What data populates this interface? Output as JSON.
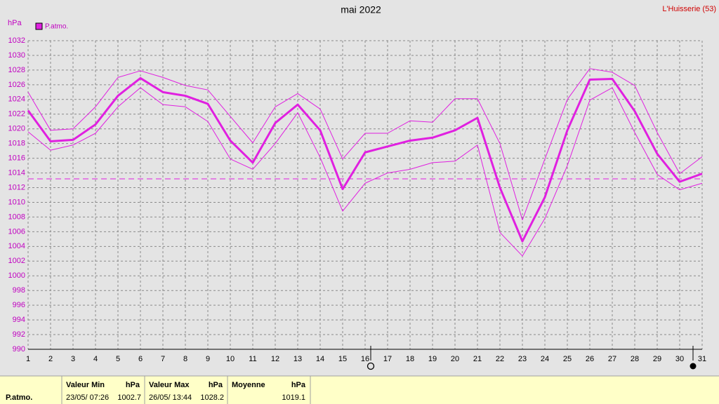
{
  "chart_data": {
    "type": "line",
    "title": "mai 2022",
    "location": "L'Huisserie (53)",
    "y_label": "hPa",
    "x": [
      1,
      2,
      3,
      4,
      5,
      6,
      7,
      8,
      9,
      10,
      11,
      12,
      13,
      14,
      15,
      16,
      17,
      18,
      19,
      20,
      21,
      22,
      23,
      24,
      25,
      26,
      27,
      28,
      29,
      30,
      31
    ],
    "series": [
      {
        "name": "P.atmo.",
        "color": "#e020e0",
        "width": 3,
        "values": [
          1022.5,
          1018.3,
          1018.5,
          1020.6,
          1024.5,
          1026.9,
          1025.0,
          1024.5,
          1023.4,
          1018.4,
          1015.4,
          1020.8,
          1023.3,
          1019.8,
          1011.8,
          1016.8,
          1017.6,
          1018.4,
          1018.8,
          1019.8,
          1021.5,
          1012.0,
          1004.7,
          1010.7,
          1019.8,
          1026.7,
          1026.8,
          1022.4,
          1016.6,
          1012.8,
          1013.9
        ]
      },
      {
        "color": "#e020e0",
        "width": 1,
        "values": [
          1025.0,
          1019.8,
          1020.0,
          1023.0,
          1027.0,
          1027.9,
          1027.0,
          1025.9,
          1025.3,
          1021.7,
          1018.1,
          1023.0,
          1024.8,
          1022.7,
          1015.9,
          1019.4,
          1019.4,
          1021.1,
          1020.9,
          1024.1,
          1024.1,
          1018.0,
          1007.6,
          1015.9,
          1024.0,
          1028.2,
          1027.7,
          1025.9,
          1019.5,
          1013.9,
          1016.2
        ]
      },
      {
        "color": "#e020e0",
        "width": 1,
        "values": [
          1019.6,
          1017.1,
          1017.8,
          1019.4,
          1023.0,
          1025.6,
          1023.3,
          1023.0,
          1021.0,
          1015.9,
          1014.5,
          1018.0,
          1022.2,
          1016.1,
          1008.8,
          1012.6,
          1014.0,
          1014.5,
          1015.4,
          1015.6,
          1017.8,
          1005.9,
          1002.7,
          1007.8,
          1015.0,
          1023.9,
          1025.6,
          1019.5,
          1013.8,
          1011.7,
          1012.6
        ]
      }
    ],
    "reference_line": 1013.2,
    "xlim": [
      1,
      31
    ],
    "xticks": [
      1,
      2,
      3,
      4,
      5,
      6,
      7,
      8,
      9,
      10,
      11,
      12,
      13,
      14,
      15,
      16,
      17,
      18,
      19,
      20,
      21,
      22,
      23,
      24,
      25,
      26,
      27,
      28,
      29,
      30,
      31
    ],
    "ylim": [
      990,
      1032
    ],
    "yticks": [
      990,
      992,
      994,
      996,
      998,
      1000,
      1002,
      1004,
      1006,
      1008,
      1010,
      1012,
      1014,
      1016,
      1018,
      1020,
      1022,
      1024,
      1026,
      1028,
      1030,
      1032
    ],
    "grid": true,
    "legend": "top-left"
  },
  "footer": {
    "label": "P.atmo.",
    "min": {
      "title": "Valeur Min",
      "unit": "hPa",
      "date": "23/05/  07:26",
      "value": "1002.7"
    },
    "max": {
      "title": "Valeur Max",
      "unit": "hPa",
      "date": "26/05/  13:44",
      "value": "1028.2"
    },
    "mean": {
      "title": "Moyenne",
      "unit": "hPa",
      "value": "1019.1"
    }
  }
}
